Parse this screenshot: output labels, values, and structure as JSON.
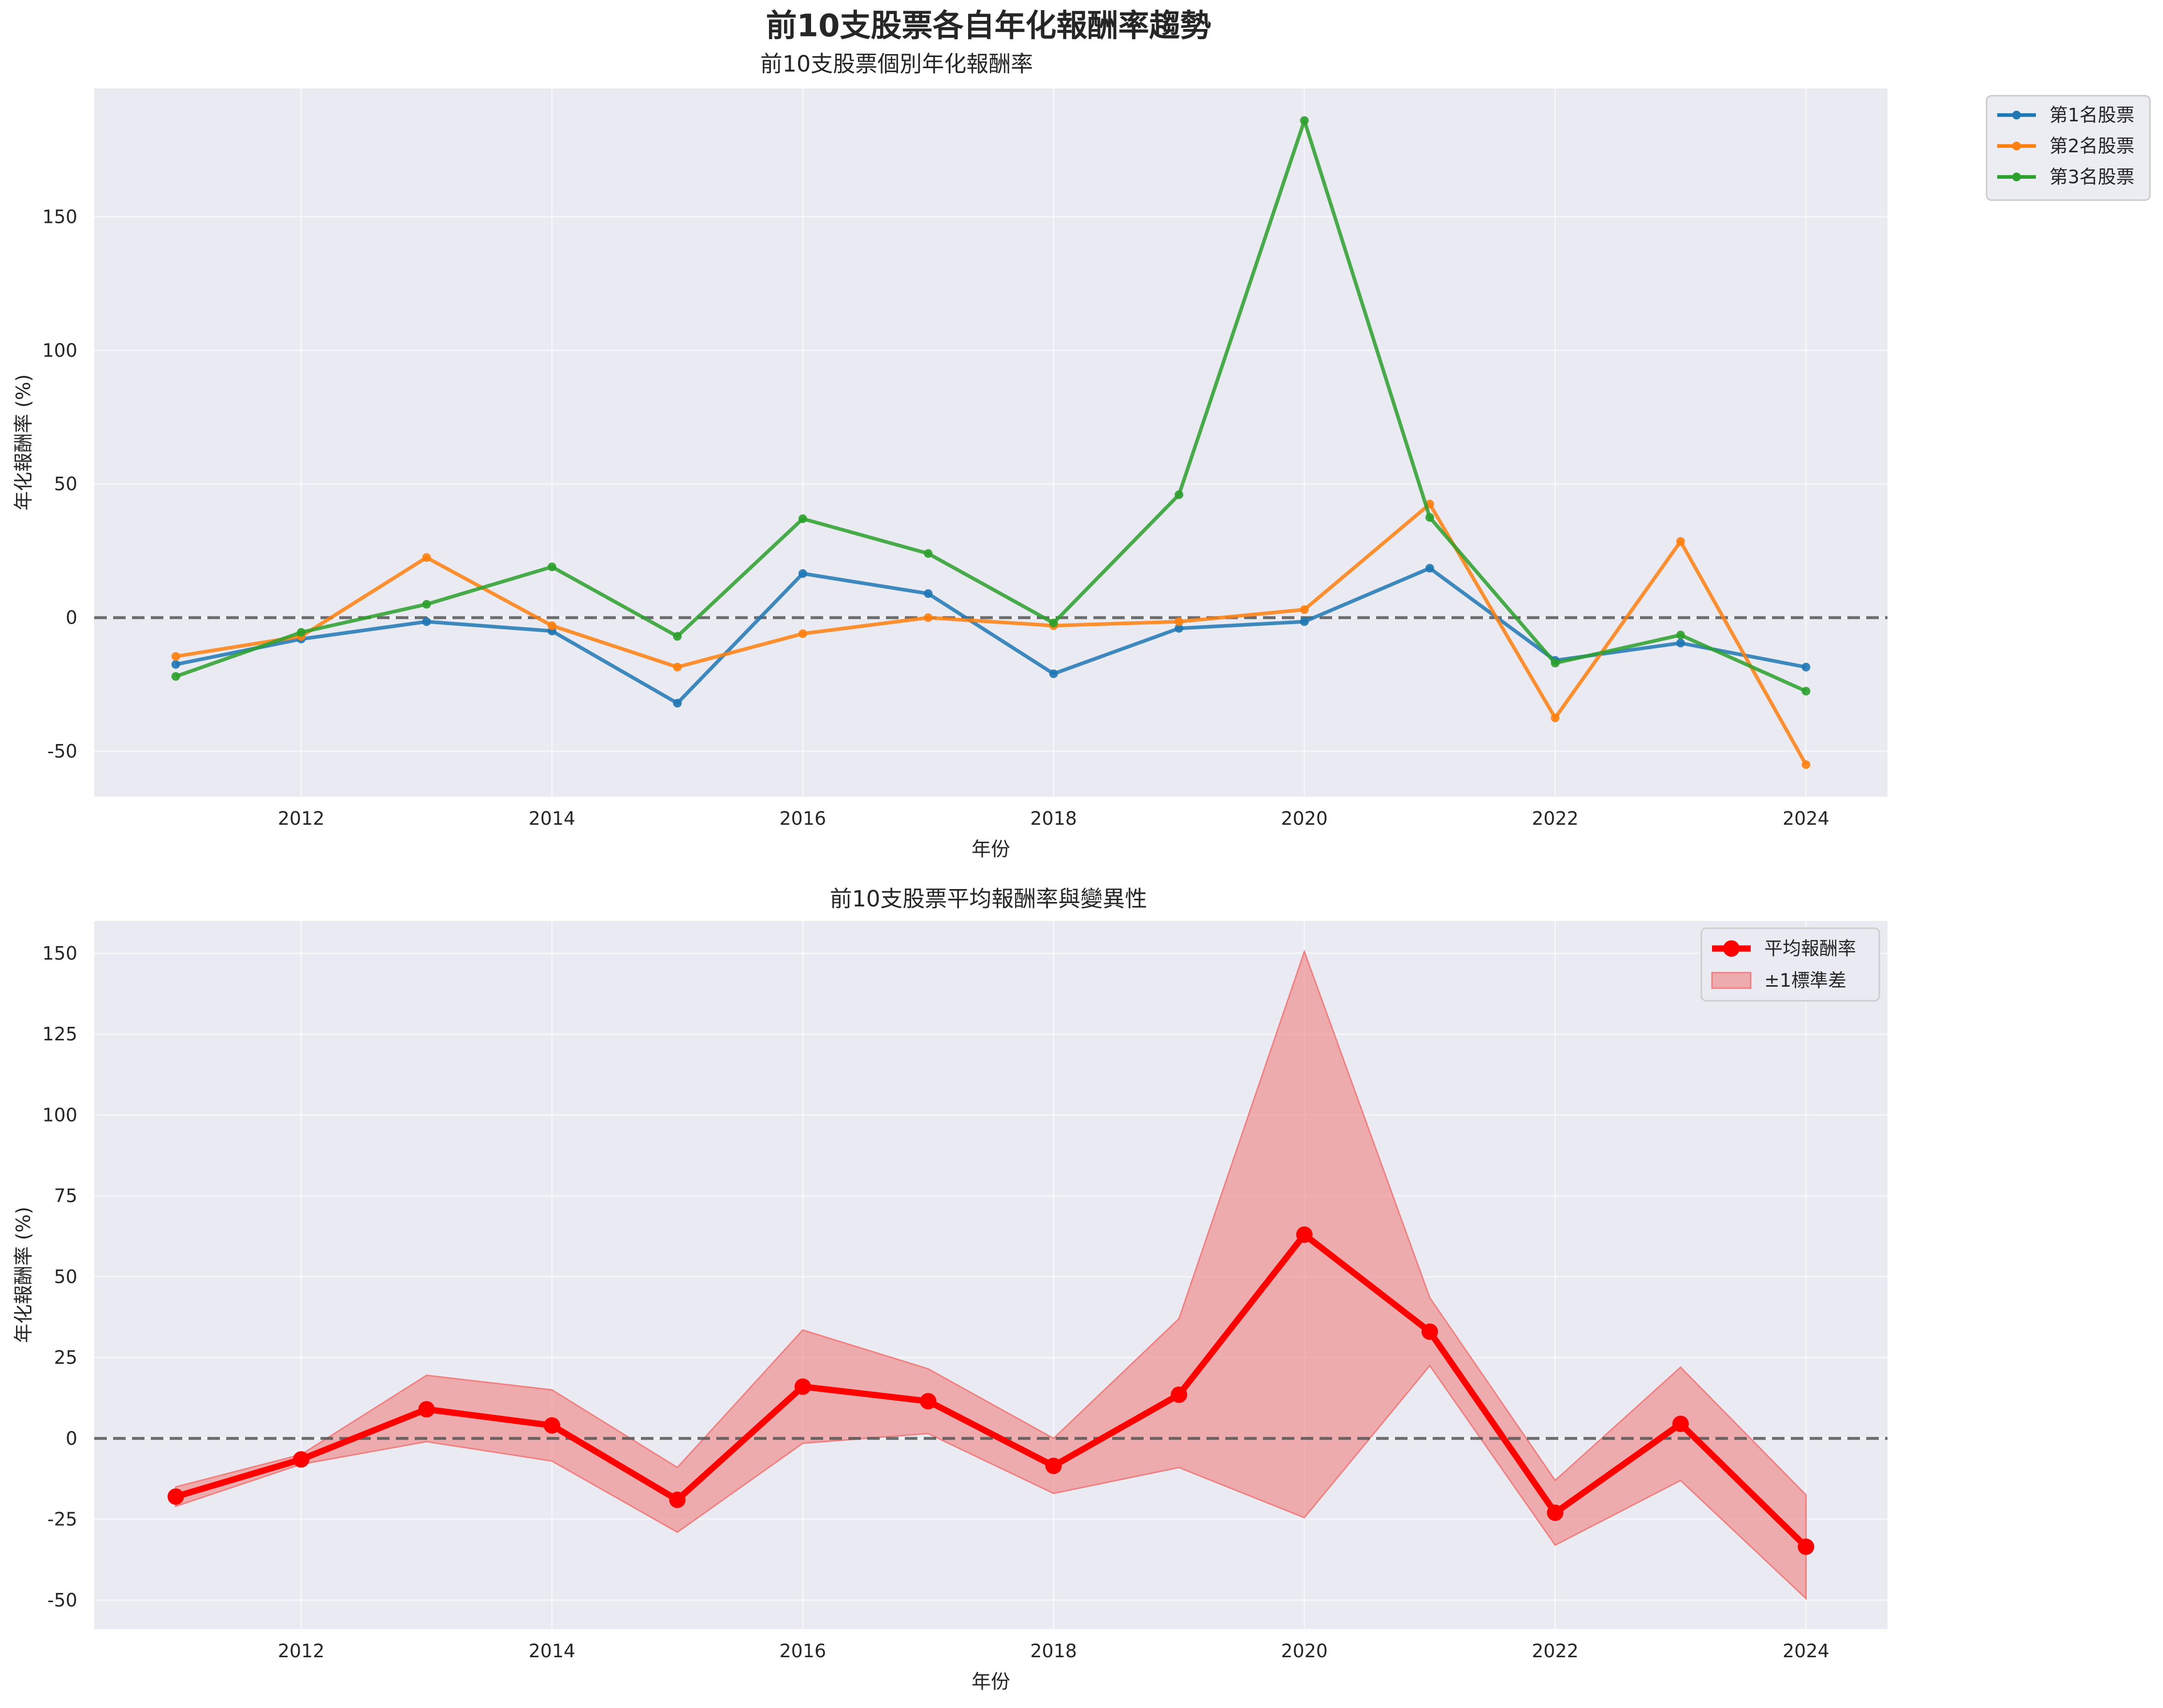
{
  "figure": {
    "title": "前10支股票各自年化報酬率趨勢"
  },
  "chart_data": [
    {
      "type": "line",
      "title": "前10支股票個別年化報酬率",
      "xlabel": "年份",
      "ylabel": "年化報酬率 (%)",
      "x": [
        2011,
        2012,
        2013,
        2014,
        2015,
        2016,
        2017,
        2018,
        2019,
        2020,
        2021,
        2022,
        2023,
        2024
      ],
      "xticks": [
        2012,
        2014,
        2016,
        2018,
        2020,
        2022,
        2024
      ],
      "yticks": [
        -50,
        0,
        50,
        100,
        150
      ],
      "xlim": [
        2010.35,
        2024.65
      ],
      "ylim": [
        -67,
        198
      ],
      "grid": true,
      "reference_line": 0,
      "legend_position": "outside-top-right",
      "series": [
        {
          "name": "第1名股票",
          "color": "#1f77b4",
          "values": [
            -17.5,
            -8,
            -1.5,
            -5,
            -32,
            16.5,
            9,
            -21,
            -4,
            -1.5,
            18.5,
            -16,
            -9.5,
            -18.5
          ]
        },
        {
          "name": "第2名股票",
          "color": "#ff7f0e",
          "values": [
            -14.5,
            -7,
            22.5,
            -3,
            -18.5,
            -6,
            0,
            -3,
            -1.5,
            3,
            42.5,
            -37.5,
            28.5,
            -55
          ]
        },
        {
          "name": "第3名股票",
          "color": "#2ca02c",
          "values": [
            -22,
            -5.5,
            5,
            19,
            -7,
            37,
            24,
            -2,
            46,
            186,
            37.5,
            -17,
            -6.5,
            -27.5
          ]
        }
      ]
    },
    {
      "type": "line",
      "title": "前10支股票平均報酬率與變異性",
      "xlabel": "年份",
      "ylabel": "年化報酬率 (%)",
      "x": [
        2011,
        2012,
        2013,
        2014,
        2015,
        2016,
        2017,
        2018,
        2019,
        2020,
        2021,
        2022,
        2023,
        2024
      ],
      "xticks": [
        2012,
        2014,
        2016,
        2018,
        2020,
        2022,
        2024
      ],
      "yticks": [
        -50,
        -25,
        0,
        25,
        50,
        75,
        100,
        125,
        150
      ],
      "xlim": [
        2010.35,
        2024.65
      ],
      "ylim": [
        -59,
        160
      ],
      "grid": true,
      "reference_line": 0,
      "legend_position": "top-right",
      "series": [
        {
          "name": "平均報酬率",
          "color": "#ff0000",
          "values": [
            -18,
            -6.5,
            9,
            4,
            -19,
            16,
            11.5,
            -8.5,
            13.5,
            63,
            33,
            -23,
            4.5,
            -33.5
          ]
        }
      ],
      "band": {
        "name": "±1標準差",
        "color": "#f08080",
        "upper": [
          -15,
          -5,
          19.5,
          15,
          -9,
          33.5,
          21.5,
          0,
          37,
          150.5,
          43.5,
          -13,
          22,
          -17.5
        ],
        "lower": [
          -21,
          -8,
          -1,
          -7,
          -29,
          -1.5,
          1.5,
          -17,
          -9,
          -24.5,
          22.5,
          -33,
          -13,
          -49.5
        ]
      }
    }
  ]
}
